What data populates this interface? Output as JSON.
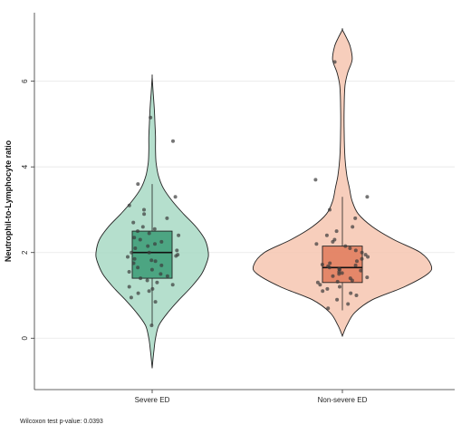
{
  "chart_data": {
    "type": "violin",
    "ylabel": "Neutrophil-to-Lymphocyte ratio",
    "xlabel": "",
    "ylim": [
      -1.2,
      7.6
    ],
    "yticks": [
      0,
      2,
      4,
      6
    ],
    "grid": true,
    "categories": [
      "Severe ED",
      "Non-severe ED"
    ],
    "note": "Wilcoxon test p-value: 0.0393",
    "groups": [
      {
        "name": "Severe ED",
        "fill": "#a8d9c4",
        "box_fill": "#3a9b74",
        "range": [
          -0.7,
          6.1
        ],
        "box": {
          "q1": 1.4,
          "median": 2.0,
          "q3": 2.5,
          "whisker_low": 0.3,
          "whisker_high": 3.6
        },
        "density": [
          [
            -0.7,
            0.0
          ],
          [
            -0.3,
            0.03
          ],
          [
            0.0,
            0.06
          ],
          [
            0.3,
            0.12
          ],
          [
            0.6,
            0.28
          ],
          [
            0.9,
            0.48
          ],
          [
            1.2,
            0.7
          ],
          [
            1.5,
            0.88
          ],
          [
            1.8,
            0.98
          ],
          [
            2.0,
            1.0
          ],
          [
            2.3,
            0.94
          ],
          [
            2.6,
            0.78
          ],
          [
            2.9,
            0.56
          ],
          [
            3.2,
            0.36
          ],
          [
            3.5,
            0.2
          ],
          [
            3.8,
            0.11
          ],
          [
            4.1,
            0.07
          ],
          [
            4.4,
            0.06
          ],
          [
            4.7,
            0.06
          ],
          [
            5.0,
            0.05
          ],
          [
            5.3,
            0.04
          ],
          [
            5.7,
            0.02
          ],
          [
            6.1,
            0.0
          ]
        ],
        "points": [
          0.3,
          0.85,
          0.95,
          1.05,
          1.1,
          1.15,
          1.2,
          1.25,
          1.3,
          1.35,
          1.4,
          1.45,
          1.5,
          1.55,
          1.6,
          1.65,
          1.7,
          1.75,
          1.8,
          1.82,
          1.85,
          1.9,
          1.92,
          1.95,
          2.0,
          2.0,
          2.05,
          2.1,
          2.15,
          2.2,
          2.25,
          2.3,
          2.35,
          2.4,
          2.45,
          2.5,
          2.55,
          2.6,
          2.7,
          2.8,
          2.9,
          3.0,
          3.1,
          3.3,
          3.6,
          4.6,
          5.15
        ]
      },
      {
        "name": "Non-severe ED",
        "fill": "#f6c6b0",
        "box_fill": "#e07a5a",
        "range": [
          0.05,
          7.2
        ],
        "box": {
          "q1": 1.3,
          "median": 1.65,
          "q3": 2.15,
          "whisker_low": 0.65,
          "whisker_high": 3.3
        },
        "density": [
          [
            0.05,
            0.0
          ],
          [
            0.3,
            0.05
          ],
          [
            0.6,
            0.14
          ],
          [
            0.9,
            0.34
          ],
          [
            1.2,
            0.7
          ],
          [
            1.5,
            0.96
          ],
          [
            1.7,
            1.0
          ],
          [
            2.0,
            0.88
          ],
          [
            2.3,
            0.58
          ],
          [
            2.6,
            0.34
          ],
          [
            2.9,
            0.18
          ],
          [
            3.2,
            0.11
          ],
          [
            3.5,
            0.08
          ],
          [
            3.8,
            0.05
          ],
          [
            4.2,
            0.03
          ],
          [
            4.8,
            0.02
          ],
          [
            5.4,
            0.02
          ],
          [
            5.9,
            0.03
          ],
          [
            6.2,
            0.06
          ],
          [
            6.5,
            0.11
          ],
          [
            6.8,
            0.09
          ],
          [
            7.0,
            0.05
          ],
          [
            7.2,
            0.0
          ]
        ],
        "points": [
          0.7,
          0.8,
          0.9,
          1.0,
          1.05,
          1.1,
          1.15,
          1.2,
          1.25,
          1.3,
          1.32,
          1.35,
          1.4,
          1.42,
          1.45,
          1.5,
          1.52,
          1.55,
          1.58,
          1.6,
          1.62,
          1.65,
          1.68,
          1.7,
          1.72,
          1.75,
          1.8,
          1.85,
          1.9,
          1.95,
          2.0,
          2.05,
          2.1,
          2.15,
          2.2,
          2.25,
          2.3,
          2.4,
          2.5,
          2.6,
          2.8,
          3.0,
          3.3,
          3.7,
          6.45
        ]
      }
    ]
  }
}
